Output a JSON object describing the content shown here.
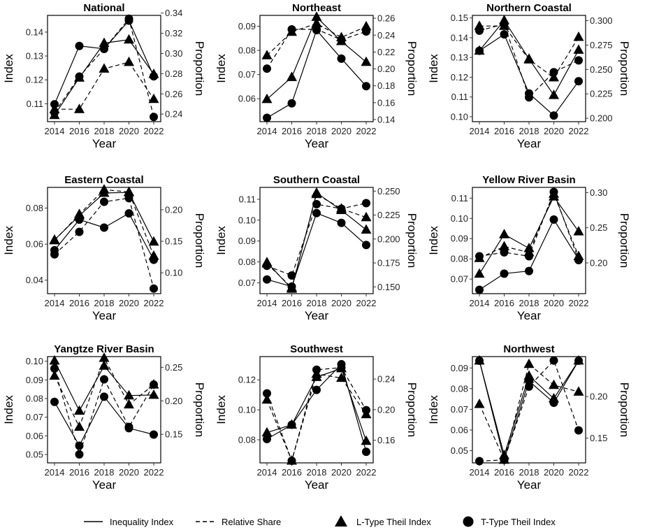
{
  "chart_data": {
    "type": "line",
    "x": [
      2014,
      2016,
      2018,
      2020,
      2022
    ],
    "xlabel": "Year",
    "ylabel_left": "Index",
    "ylabel_right": "Proportion",
    "legend": {
      "position": "bottom",
      "items": [
        {
          "key": "inequality",
          "label": "Inequality Index",
          "linestyle": "solid"
        },
        {
          "key": "share",
          "label": "Relative Share",
          "linestyle": "dashed"
        },
        {
          "key": "L",
          "label": "L-Type Theil Index",
          "marker": "triangle"
        },
        {
          "key": "T",
          "label": "T-Type Theil Index",
          "marker": "circle"
        }
      ]
    },
    "panels": [
      {
        "title": "National",
        "left_axis": {
          "ylim": [
            0.1025,
            0.147
          ],
          "ticks": [
            "0.11",
            "0.12",
            "0.13",
            "0.14"
          ],
          "tick_values": [
            0.11,
            0.12,
            0.13,
            0.14
          ]
        },
        "right_axis": {
          "ylim": [
            0.2325,
            0.3377
          ],
          "ticks": [
            "0.24",
            "0.26",
            "0.28",
            "0.30",
            "0.32",
            "0.34"
          ],
          "tick_values": [
            0.24,
            0.26,
            0.28,
            0.3,
            0.32,
            0.34
          ]
        },
        "series": {
          "L_index": [
            0.1052,
            0.1209,
            0.1354,
            0.1368,
            0.1224
          ],
          "T_index": [
            0.1098,
            0.1342,
            0.133,
            0.1448,
            0.1215
          ],
          "L_share": [
            0.2448,
            0.2448,
            0.2848,
            0.2914,
            0.2548
          ],
          "T_share": [
            0.2415,
            0.2771,
            0.3046,
            0.3344,
            0.2372
          ]
        }
      },
      {
        "title": "Northeast",
        "left_axis": {
          "ylim": [
            0.0505,
            0.0945
          ],
          "ticks": [
            "0.06",
            "0.07",
            "0.08",
            "0.09"
          ],
          "tick_values": [
            0.06,
            0.07,
            0.08,
            0.09
          ]
        },
        "right_axis": {
          "ylim": [
            0.1375,
            0.2634
          ],
          "ticks": [
            "0.14",
            "0.16",
            "0.18",
            "0.20",
            "0.22",
            "0.24",
            "0.26"
          ],
          "tick_values": [
            0.14,
            0.16,
            0.18,
            0.2,
            0.22,
            0.24,
            0.26
          ]
        },
        "series": {
          "L_index": [
            0.0598,
            0.0689,
            0.0938,
            0.0838,
            0.0752
          ],
          "T_index": [
            0.0521,
            0.0581,
            0.0884,
            0.0766,
            0.0652
          ],
          "L_share": [
            0.2159,
            0.2438,
            0.2539,
            0.2373,
            0.2502
          ],
          "T_share": [
            0.2003,
            0.2468,
            0.2468,
            0.2345,
            0.2443
          ]
        }
      },
      {
        "title": "Northern Coastal",
        "left_axis": {
          "ylim": [
            0.0975,
            0.1513
          ],
          "ticks": [
            "0.10",
            "0.11",
            "0.12",
            "0.13",
            "0.14",
            "0.15"
          ],
          "tick_values": [
            0.1,
            0.11,
            0.12,
            0.13,
            0.14,
            0.15
          ]
        },
        "right_axis": {
          "ylim": [
            0.1965,
            0.3054
          ],
          "ticks": [
            "0.200",
            "0.225",
            "0.250",
            "0.275",
            "0.300"
          ],
          "tick_values": [
            0.2,
            0.225,
            0.25,
            0.275,
            0.3
          ]
        },
        "series": {
          "L_index": [
            0.1334,
            0.1488,
            0.1293,
            0.1109,
            0.1338
          ],
          "T_index": [
            0.1334,
            0.1417,
            0.1118,
            0.1006,
            0.118
          ],
          "L_share": [
            0.2945,
            0.2945,
            0.2601,
            0.2417,
            0.2832
          ],
          "T_share": [
            0.2897,
            0.2966,
            0.2214,
            0.2472,
            0.2593
          ]
        }
      },
      {
        "title": "Eastern Coastal",
        "left_axis": {
          "ylim": [
            0.0325,
            0.0915
          ],
          "ticks": [
            "0.04",
            "0.06",
            "0.08"
          ],
          "tick_values": [
            0.04,
            0.06,
            0.08
          ]
        },
        "right_axis": {
          "ylim": [
            0.067,
            0.2354
          ],
          "ticks": [
            "0.10",
            "0.15",
            "0.20"
          ],
          "tick_values": [
            0.1,
            0.15,
            0.2
          ]
        },
        "series": {
          "L_index": [
            0.0624,
            0.0758,
            0.0884,
            0.0887,
            0.0613
          ],
          "T_index": [
            0.0566,
            0.0736,
            0.0692,
            0.0771,
            0.0513
          ],
          "L_share": [
            0.1513,
            0.1929,
            0.2319,
            0.2281,
            0.1268
          ],
          "T_share": [
            0.1293,
            0.1649,
            0.2126,
            0.2183,
            0.0751
          ]
        }
      },
      {
        "title": "Southern Coastal",
        "left_axis": {
          "ylim": [
            0.0648,
            0.1157
          ],
          "ticks": [
            "0.07",
            "0.08",
            "0.09",
            "0.10",
            "0.11"
          ],
          "tick_values": [
            0.07,
            0.08,
            0.09,
            0.1,
            0.11
          ]
        },
        "right_axis": {
          "ylim": [
            0.1429,
            0.2539
          ],
          "ticks": [
            "0.150",
            "0.175",
            "0.200",
            "0.225",
            "0.250"
          ],
          "tick_values": [
            0.15,
            0.175,
            0.2,
            0.225,
            0.25
          ]
        },
        "series": {
          "L_index": [
            0.0798,
            0.0671,
            0.1131,
            0.1048,
            0.0954
          ],
          "T_index": [
            0.0716,
            0.0682,
            0.1034,
            0.0987,
            0.0881
          ],
          "L_share": [
            0.1742,
            0.1492,
            0.2468,
            0.2316,
            0.2226
          ],
          "T_share": [
            0.172,
            0.1619,
            0.2364,
            0.2316,
            0.2375
          ]
        }
      },
      {
        "title": "Yellow River Basin",
        "left_axis": {
          "ylim": [
            0.0628,
            0.1153
          ],
          "ticks": [
            "0.07",
            "0.08",
            "0.09",
            "0.10",
            "0.11"
          ],
          "tick_values": [
            0.07,
            0.08,
            0.09,
            0.1,
            0.11
          ]
        },
        "right_axis": {
          "ylim": [
            0.1563,
            0.3073
          ],
          "ticks": [
            "0.20",
            "0.25",
            "0.30"
          ],
          "tick_values": [
            0.2,
            0.25,
            0.3
          ]
        },
        "series": {
          "L_index": [
            0.0726,
            0.0921,
            0.0852,
            0.1107,
            0.0935
          ],
          "T_index": [
            0.0647,
            0.0727,
            0.074,
            0.0994,
            0.0797
          ],
          "L_share": [
            0.2068,
            0.2234,
            0.215,
            0.2982,
            0.2094
          ],
          "T_share": [
            0.2094,
            0.215,
            0.2094,
            0.3008,
            0.204
          ]
        }
      },
      {
        "title": "Yangtze River Basin",
        "left_axis": {
          "ylim": [
            0.0455,
            0.1025
          ],
          "ticks": [
            "0.05",
            "0.06",
            "0.07",
            "0.08",
            "0.09",
            "0.10"
          ],
          "tick_values": [
            0.05,
            0.06,
            0.07,
            0.08,
            0.09,
            0.1
          ]
        },
        "right_axis": {
          "ylim": [
            0.1074,
            0.266
          ],
          "ticks": [
            "0.15",
            "0.20",
            "0.25"
          ],
          "tick_values": [
            0.15,
            0.2,
            0.25
          ]
        },
        "series": {
          "L_index": [
            0.1003,
            0.0734,
            0.0975,
            0.0816,
            0.0819
          ],
          "T_index": [
            0.0782,
            0.0547,
            0.081,
            0.0641,
            0.0607
          ],
          "L_share": [
            0.2373,
            0.161,
            0.2639,
            0.1944,
            0.2242
          ],
          "T_share": [
            0.2481,
            0.1201,
            0.2321,
            0.161,
            0.2242
          ]
        }
      },
      {
        "title": "Southwest",
        "left_axis": {
          "ylim": [
            0.0646,
            0.1355
          ],
          "ticks": [
            "0.08",
            "0.10",
            "0.12"
          ],
          "tick_values": [
            0.08,
            0.1,
            0.12
          ]
        },
        "right_axis": {
          "ylim": [
            0.1303,
            0.2694
          ],
          "ticks": [
            "0.16",
            "0.20",
            "0.24"
          ],
          "tick_values": [
            0.16,
            0.2,
            0.24
          ]
        },
        "series": {
          "L_index": [
            0.0848,
            0.09,
            0.1218,
            0.1276,
            0.0792
          ],
          "T_index": [
            0.0805,
            0.09,
            0.1133,
            0.1304,
            0.072
          ],
          "L_share": [
            0.2128,
            0.133,
            0.2466,
            0.2414,
            0.1938
          ],
          "T_share": [
            0.2212,
            0.133,
            0.2522,
            0.2549,
            0.1993
          ]
        }
      },
      {
        "title": "Northwest",
        "left_axis": {
          "ylim": [
            0.0441,
            0.0955
          ],
          "ticks": [
            "0.05",
            "0.06",
            "0.07",
            "0.08",
            "0.09"
          ],
          "tick_values": [
            0.05,
            0.06,
            0.07,
            0.08,
            0.09
          ]
        },
        "right_axis": {
          "ylim": [
            0.1204,
            0.2479
          ],
          "ticks": [
            "0.15",
            "0.20"
          ],
          "tick_values": [
            0.15,
            0.2
          ]
        },
        "series": {
          "L_index": [
            0.0935,
            0.0478,
            0.0862,
            0.0752,
            0.0935
          ],
          "T_index": [
            0.0935,
            0.0458,
            0.0837,
            0.0732,
            0.0935
          ],
          "L_share": [
            0.1909,
            0.124,
            0.2389,
            0.2137,
            0.2056
          ],
          "T_share": [
            0.1225,
            0.124,
            0.2119,
            0.2432,
            0.1594
          ]
        }
      }
    ]
  }
}
